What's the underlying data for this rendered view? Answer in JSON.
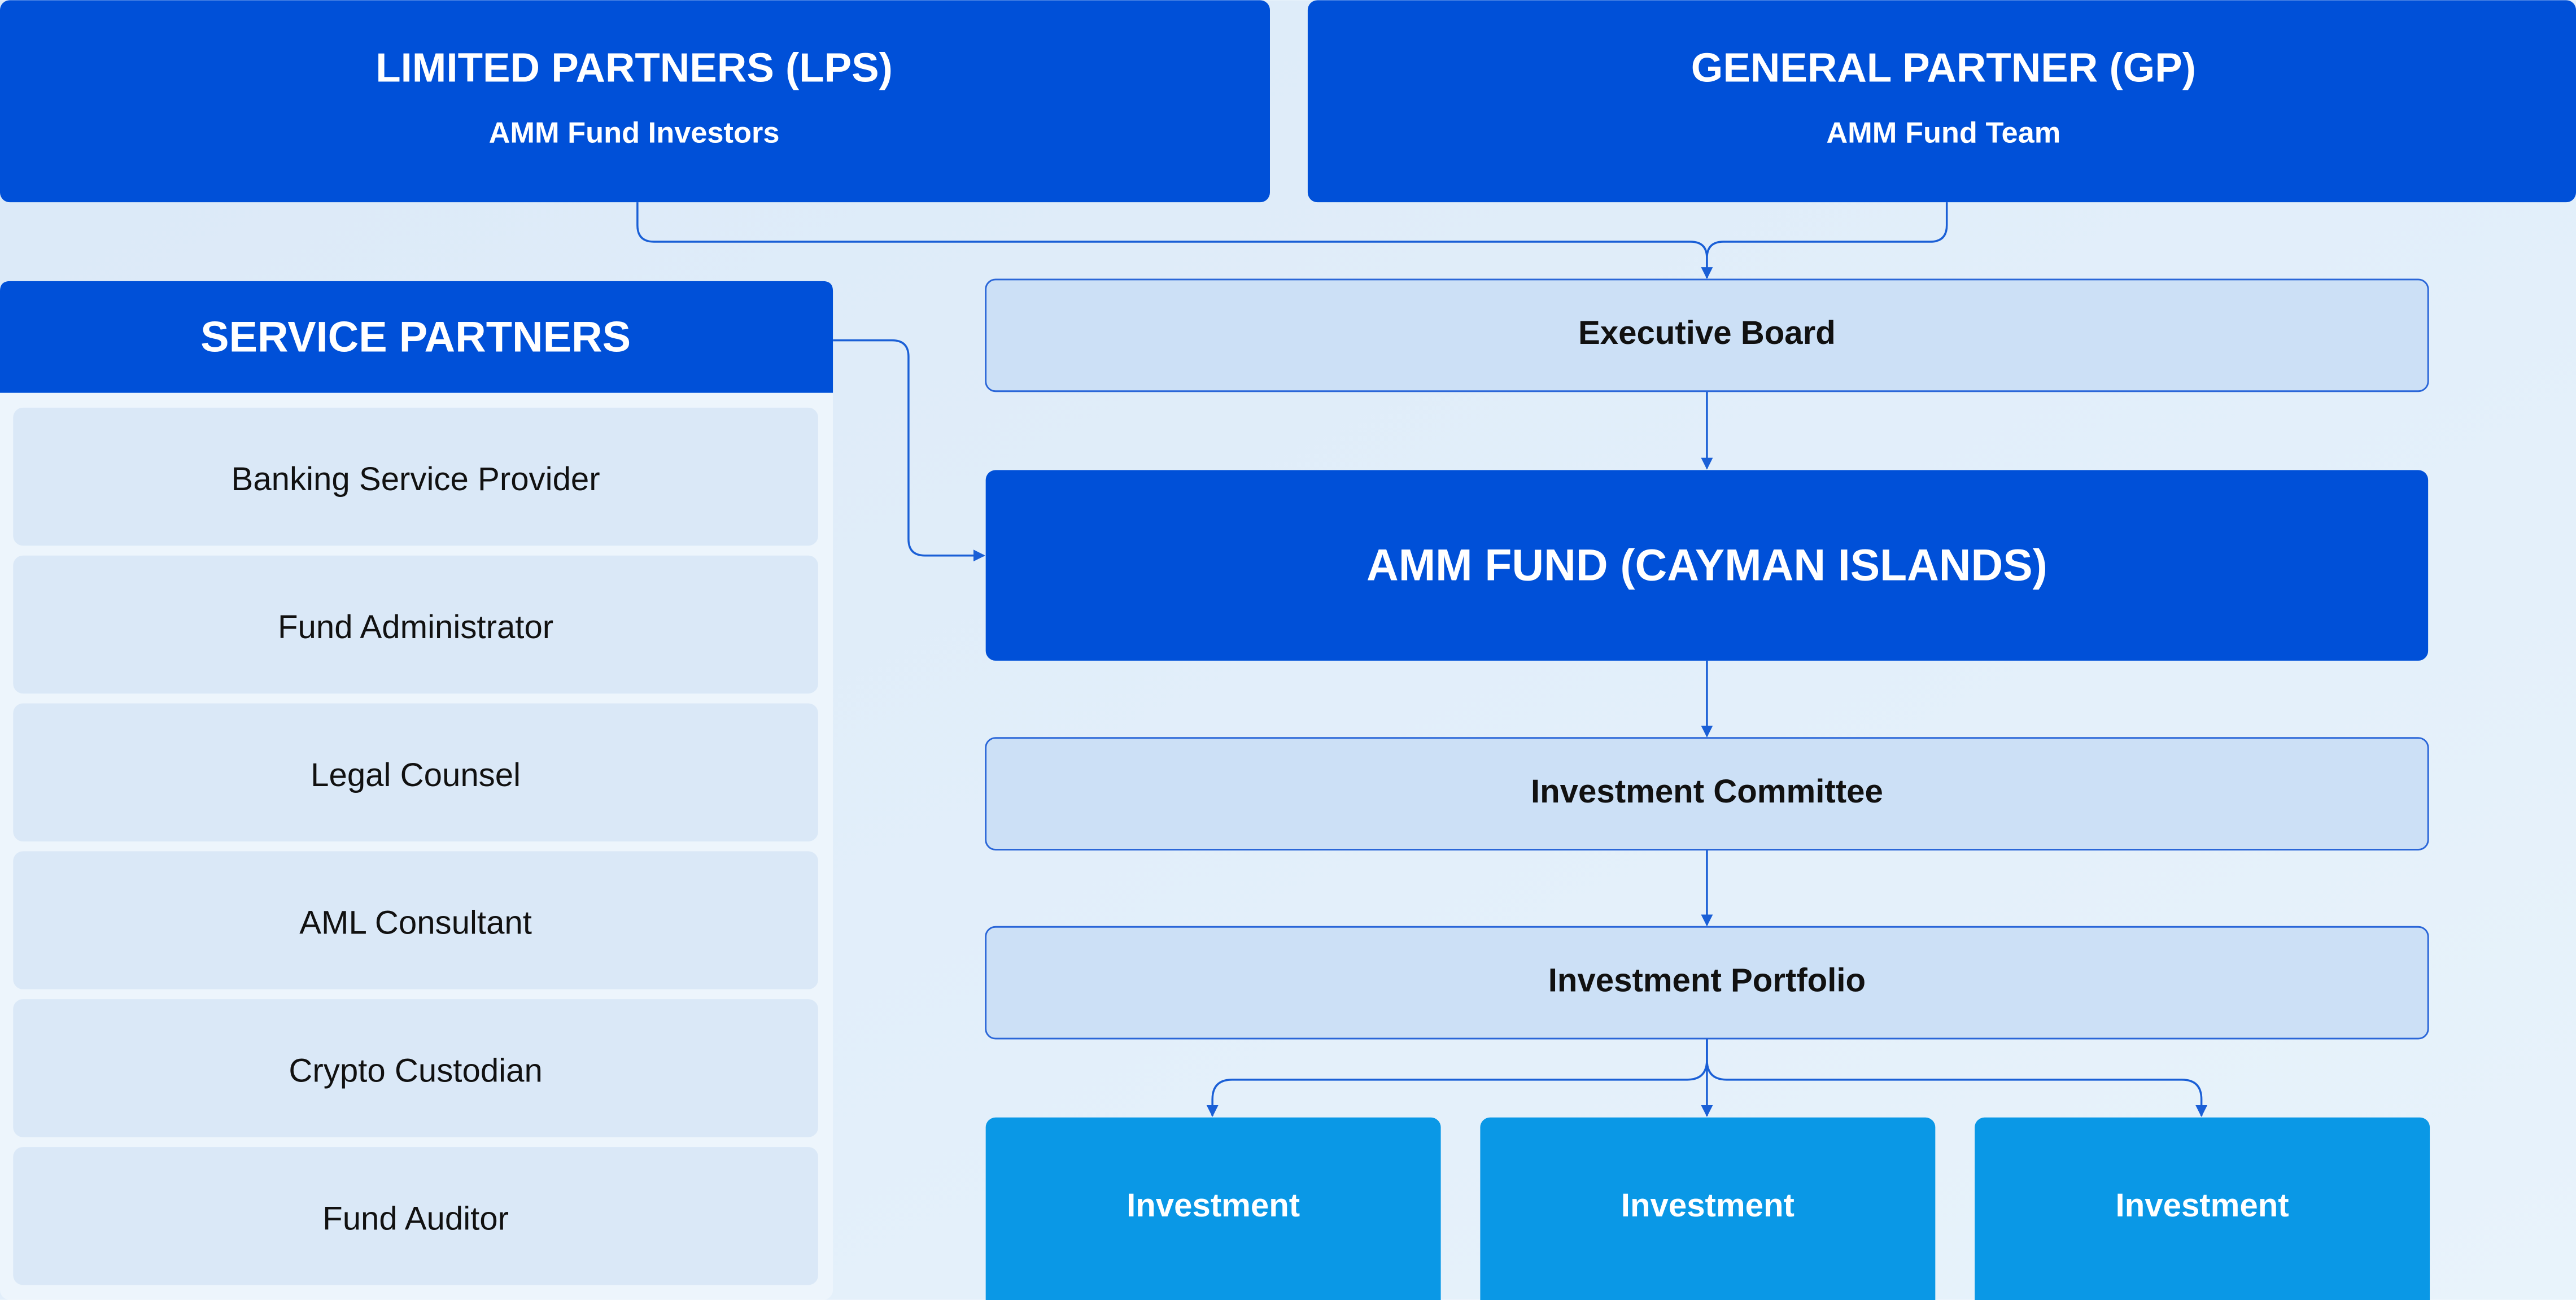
{
  "limited_partners": {
    "title": "LIMITED PARTNERS (LPS)",
    "subtitle": "AMM Fund Investors"
  },
  "general_partner": {
    "title": "GENERAL PARTNER (GP)",
    "subtitle": "AMM Fund Team"
  },
  "service_partners": {
    "title": "SERVICE PARTNERS",
    "items": [
      "Banking Service Provider",
      "Fund Administrator",
      "Legal Counsel",
      "AML Consultant",
      "Crypto Custodian",
      "Fund Auditor"
    ]
  },
  "executive_board": "Executive Board",
  "fund": "AMM FUND (CAYMAN ISLANDS)",
  "investment_committee": "Investment Committee",
  "investment_portfolio": "Investment Portfolio",
  "investments": [
    "Investment",
    "Investment",
    "Investment"
  ]
}
